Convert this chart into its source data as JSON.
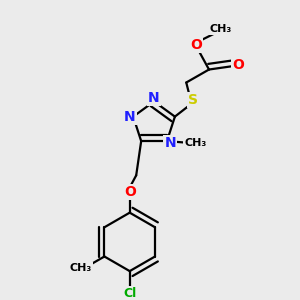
{
  "background_color": "#ebebeb",
  "atom_colors": {
    "C": "#000000",
    "N": "#2020ff",
    "O": "#ff0000",
    "S": "#cccc00",
    "Cl": "#00aa00",
    "H": "#000000"
  },
  "bond_color": "#000000",
  "bond_width": 1.6,
  "font_size_atoms": 10,
  "xlim": [
    0.5,
    3.5
  ],
  "ylim": [
    0.2,
    3.8
  ]
}
